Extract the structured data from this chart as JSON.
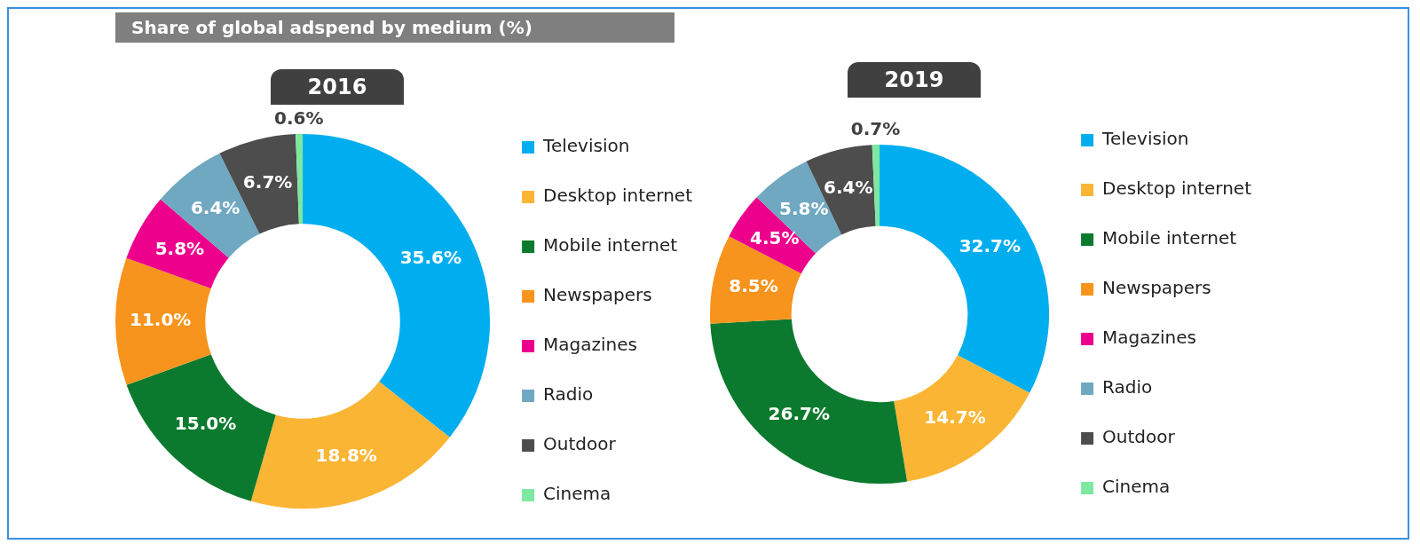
{
  "chart_data": [
    {
      "type": "donut",
      "title": "Share of global adspend by medium (%)",
      "subtitle": "2016",
      "categories": [
        "Television",
        "Desktop internet",
        "Mobile internet",
        "Newspapers",
        "Magazines",
        "Radio",
        "Outdoor",
        "Cinema"
      ],
      "values": [
        35.6,
        18.8,
        15.0,
        11.0,
        5.8,
        6.4,
        6.7,
        0.6
      ],
      "value_labels": [
        "35.6%",
        "18.8%",
        "15.0%",
        "11.0%",
        "5.8%",
        "6.4%",
        "6.7%",
        "0.6%"
      ],
      "colors": [
        "#00aeef",
        "#fbb534",
        "#0b7a2e",
        "#f7941d",
        "#ec008c",
        "#6fa8c0",
        "#4d4d4d",
        "#7ee8a0"
      ],
      "legend": "right"
    },
    {
      "type": "donut",
      "subtitle": "2019",
      "categories": [
        "Television",
        "Desktop internet",
        "Mobile internet",
        "Newspapers",
        "Magazines",
        "Radio",
        "Outdoor",
        "Cinema"
      ],
      "values": [
        32.7,
        14.7,
        26.7,
        8.5,
        4.5,
        5.8,
        6.4,
        0.7
      ],
      "value_labels": [
        "32.7%",
        "14.7%",
        "26.7%",
        "8.5%",
        "4.5%",
        "5.8%",
        "6.4%",
        "0.7%"
      ],
      "colors": [
        "#00aeef",
        "#fbb534",
        "#0b7a2e",
        "#f7941d",
        "#ec008c",
        "#6fa8c0",
        "#4d4d4d",
        "#7ee8a0"
      ],
      "legend": "right"
    }
  ]
}
